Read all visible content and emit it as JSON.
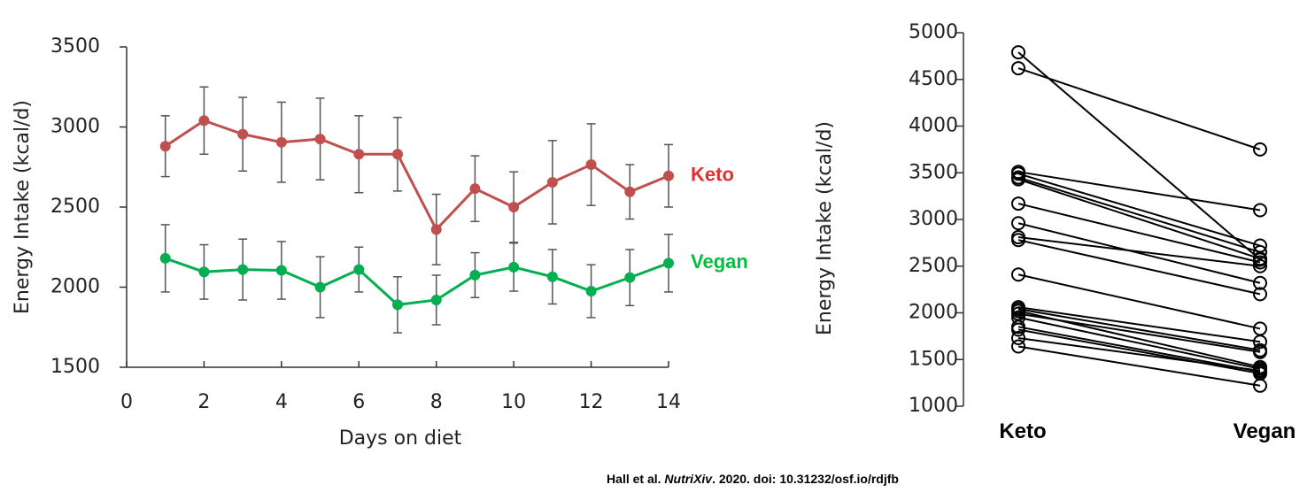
{
  "chart_data": [
    {
      "type": "line",
      "x_label": "Days on diet",
      "y_label": "Energy Intake (kcal/d)",
      "x": [
        1,
        2,
        3,
        4,
        5,
        6,
        7,
        8,
        9,
        10,
        11,
        12,
        13,
        14
      ],
      "xlim": [
        0,
        14
      ],
      "xticks": [
        0,
        2,
        4,
        6,
        8,
        10,
        12,
        14
      ],
      "ylim": [
        1500,
        3500
      ],
      "yticks": [
        1500,
        2000,
        2500,
        3000,
        3500
      ],
      "error_bar_color": "#555555",
      "series": [
        {
          "name": "Keto",
          "color": "#c0504d",
          "label_color": "#e0302f",
          "values": [
            2880,
            3040,
            2955,
            2905,
            2925,
            2830,
            2830,
            2360,
            2615,
            2500,
            2655,
            2765,
            2595,
            2695
          ],
          "errors": [
            190,
            210,
            230,
            250,
            255,
            240,
            230,
            220,
            205,
            220,
            260,
            255,
            170,
            195
          ]
        },
        {
          "name": "Vegan",
          "color": "#00b050",
          "label_color": "#00c040",
          "values": [
            2180,
            2095,
            2110,
            2105,
            2000,
            2110,
            1890,
            1920,
            2075,
            2125,
            2065,
            1975,
            2060,
            2150
          ],
          "errors": [
            210,
            170,
            190,
            180,
            190,
            140,
            175,
            155,
            140,
            150,
            170,
            165,
            175,
            180
          ]
        }
      ]
    },
    {
      "type": "paired",
      "y_label": "Energy Intake (kcal/d)",
      "categories": [
        "Keto",
        "Vegan"
      ],
      "ylim": [
        1000,
        5000
      ],
      "yticks": [
        1000,
        1500,
        2000,
        2500,
        3000,
        3500,
        4000,
        4500,
        5000
      ],
      "color": "#000000",
      "series": [
        {
          "values": [
            4790,
            2570
          ]
        },
        {
          "values": [
            4620,
            3750
          ]
        },
        {
          "values": [
            3510,
            3100
          ]
        },
        {
          "values": [
            3490,
            2720
          ]
        },
        {
          "values": [
            3450,
            2650
          ]
        },
        {
          "values": [
            3430,
            2580
          ]
        },
        {
          "values": [
            3170,
            2540
          ]
        },
        {
          "values": [
            2960,
            2320
          ]
        },
        {
          "values": [
            2810,
            2500
          ]
        },
        {
          "values": [
            2780,
            2200
          ]
        },
        {
          "values": [
            2410,
            1830
          ]
        },
        {
          "values": [
            2060,
            1690
          ]
        },
        {
          "values": [
            2040,
            1600
          ]
        },
        {
          "values": [
            2020,
            1420
          ]
        },
        {
          "values": [
            1990,
            1580
          ]
        },
        {
          "values": [
            1950,
            1400
          ]
        },
        {
          "values": [
            1850,
            1370
          ]
        },
        {
          "values": [
            1820,
            1350
          ]
        },
        {
          "values": [
            1730,
            1380
          ]
        },
        {
          "values": [
            1640,
            1220
          ]
        }
      ]
    }
  ],
  "footer": {
    "authors": "Hall et al. ",
    "journal": "NutriXiv",
    "rest": ". 2020. doi: 10.31232/osf.io/rdjfb"
  }
}
